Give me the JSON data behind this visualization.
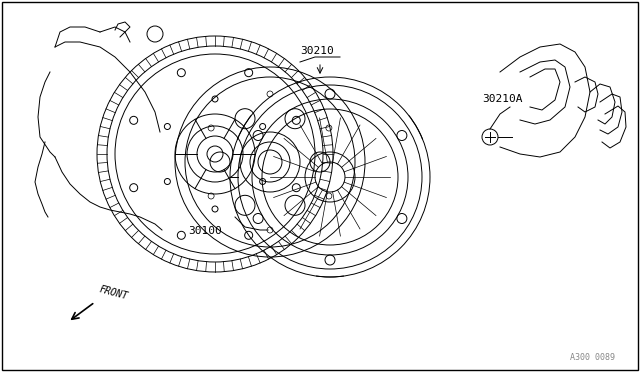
{
  "bg_color": "#ffffff",
  "border_color": "#000000",
  "line_color": "#000000",
  "text_color": "#000000",
  "label_30100": "30100",
  "label_30210": "30210",
  "label_30210A": "30210A",
  "label_front": "FRONT",
  "watermark": "A300 0089",
  "fig_width": 6.4,
  "fig_height": 3.72,
  "dpi": 100
}
